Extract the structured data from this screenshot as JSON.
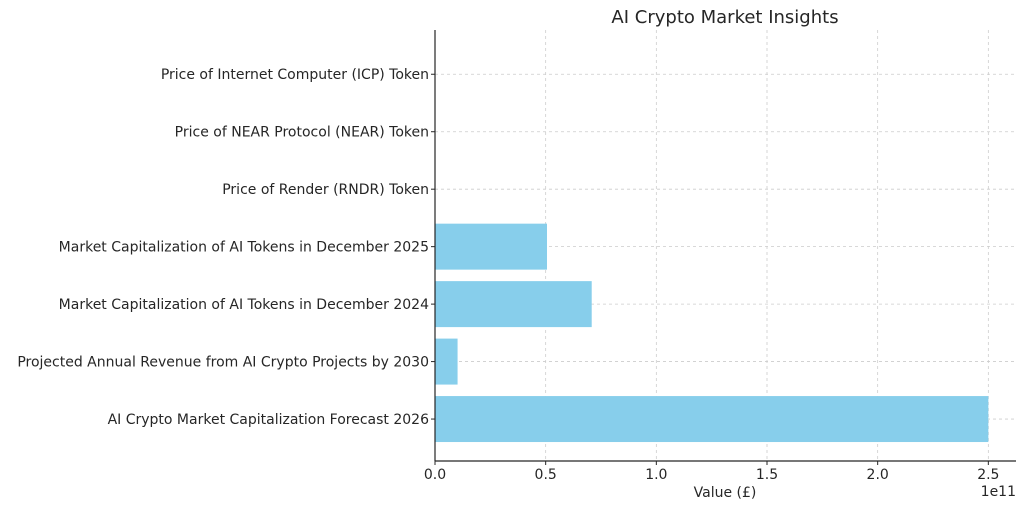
{
  "chart_data": {
    "type": "bar",
    "orientation": "horizontal",
    "title": "AI Crypto Market Insights",
    "xlabel": "Value (£)",
    "ylabel": "",
    "x_offset_label": "1e11",
    "categories": [
      "AI Crypto Market Capitalization Forecast 2026",
      "Projected Annual Revenue from AI Crypto Projects by 2030",
      "Market Capitalization of AI Tokens in December 2024",
      "Market Capitalization of AI Tokens in December 2025",
      "Price of Render (RNDR) Token",
      "Price of NEAR Protocol (NEAR) Token",
      "Price of Internet Computer (ICP) Token"
    ],
    "values": [
      250000000000,
      10200000000,
      70800000000,
      50600000000,
      0,
      0,
      0
    ],
    "xlim": [
      0,
      262500000000
    ],
    "xticks": [
      0,
      0.5,
      1.0,
      1.5,
      2.0,
      2.5
    ],
    "xtick_labels": [
      "0.0",
      "0.5",
      "1.0",
      "1.5",
      "2.0",
      "2.5"
    ],
    "tick_scale": 100000000000,
    "grid": true,
    "legend": "none",
    "bar_color": "#87CEEB"
  }
}
